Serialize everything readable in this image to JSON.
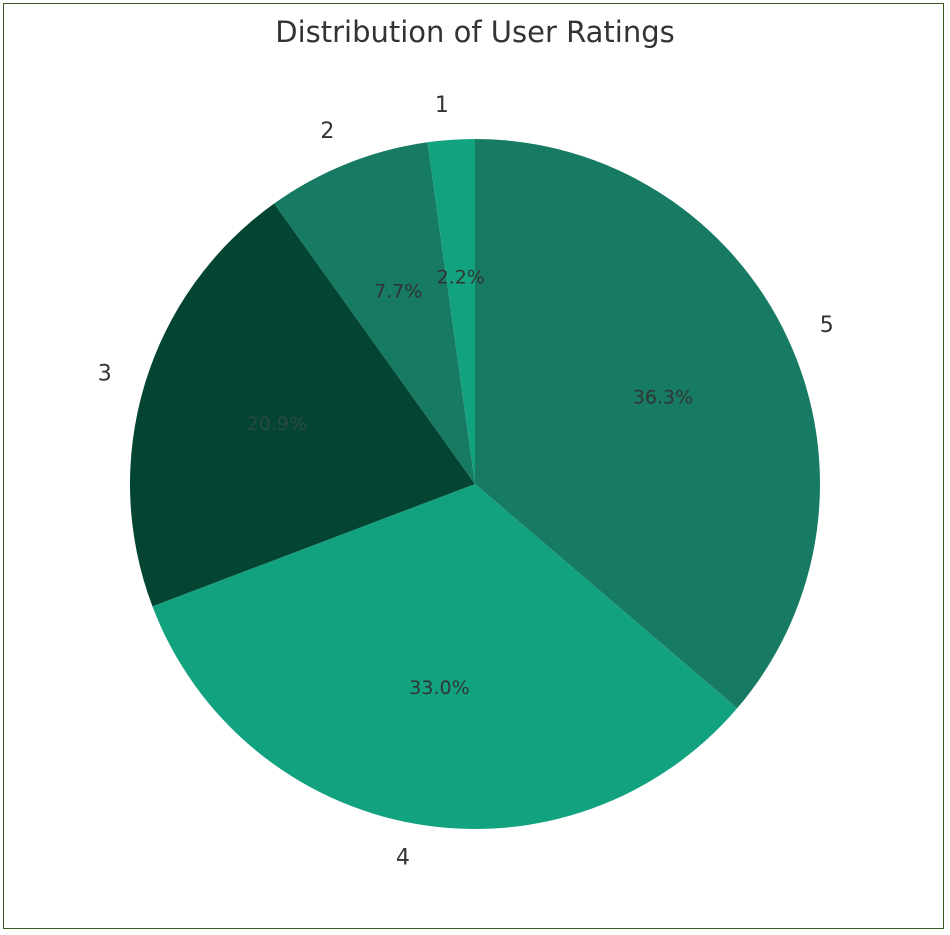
{
  "chart_data": {
    "type": "pie",
    "title": "Distribution of User Ratings",
    "categories": [
      "5",
      "4",
      "3",
      "2",
      "1"
    ],
    "values": [
      36.3,
      33.0,
      20.9,
      7.7,
      2.2
    ],
    "percent_labels": [
      "36.3%",
      "33.0%",
      "20.9%",
      "7.7%",
      "2.2%"
    ],
    "colors": [
      "#177a62",
      "#12a27f",
      "#044433",
      "#177a62",
      "#12a27f"
    ],
    "label_colors": [
      "#333333",
      "#333333",
      "#2a4a3f",
      "#333333",
      "#333333"
    ],
    "start_angle_deg": 90,
    "direction": "clockwise",
    "legend": "none"
  }
}
